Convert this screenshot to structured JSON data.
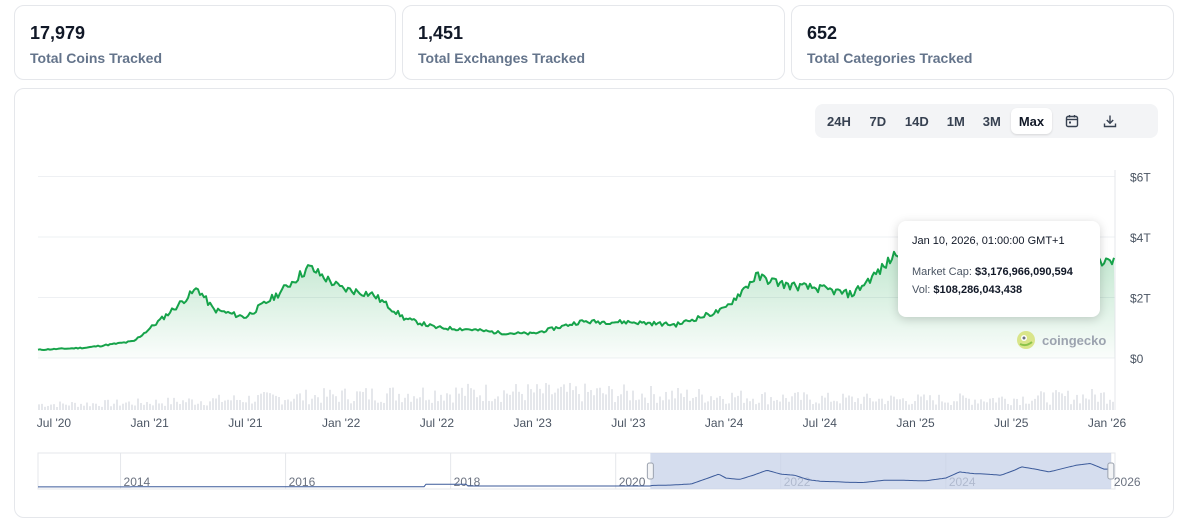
{
  "stats": [
    {
      "value": "17,979",
      "label": "Total Coins Tracked"
    },
    {
      "value": "1,451",
      "label": "Total Exchanges Tracked"
    },
    {
      "value": "652",
      "label": "Total Categories Tracked"
    }
  ],
  "range_buttons": [
    "24H",
    "7D",
    "14D",
    "1M",
    "3M",
    "Max"
  ],
  "active_range": "Max",
  "icons": {
    "calendar": "calendar-icon",
    "download": "download-icon",
    "brand": "coingecko-logo"
  },
  "tooltip": {
    "date": "Jan 10, 2026, 01:00:00 GMT+1",
    "market_cap_label": "Market Cap:",
    "market_cap_value": "$3,176,966,090,594",
    "volume_label": "Vol:",
    "volume_value": "$108,286,043,438"
  },
  "watermark": "coingecko",
  "colors": {
    "line": "#16a34a",
    "area_top": "#16a34a",
    "navigator_fill": "#c7d2e8",
    "navigator_line": "#3b5a9a"
  },
  "chart_data": {
    "type": "area",
    "series": [
      {
        "x": [
          "2020-06",
          "2020-09",
          "2020-12",
          "2021-02",
          "2021-04",
          "2021-05",
          "2021-07",
          "2021-09",
          "2021-11",
          "2022-01",
          "2022-03",
          "2022-05",
          "2022-07",
          "2022-09",
          "2022-11",
          "2023-01",
          "2023-04",
          "2023-07",
          "2023-10",
          "2024-01",
          "2024-03",
          "2024-05",
          "2024-07",
          "2024-09",
          "2024-11",
          "2024-12",
          "2025-02",
          "2025-04",
          "2025-06",
          "2025-08",
          "2025-10",
          "2025-12",
          "2026-01"
        ],
        "values": [
          0.27,
          0.34,
          0.55,
          1.4,
          2.3,
          1.6,
          1.35,
          2.1,
          3.0,
          2.3,
          2.1,
          1.3,
          1.0,
          0.95,
          0.83,
          0.8,
          1.2,
          1.19,
          1.1,
          1.6,
          2.7,
          2.4,
          2.3,
          2.1,
          3.0,
          3.6,
          3.2,
          2.7,
          3.3,
          3.9,
          4.2,
          3.2,
          3.18
        ]
      }
    ],
    "volume_series": "shown as grey bars beneath the price line",
    "y_ticks": [
      "$0",
      "$2T",
      "$4T",
      "$6T"
    ],
    "ylim": [
      0,
      6
    ],
    "x_ticks": [
      "Jul '20",
      "Jan '21",
      "Jul '21",
      "Jan '22",
      "Jul '22",
      "Jan '23",
      "Jul '23",
      "Jan '24",
      "Jul '24",
      "Jan '25",
      "Jul '25",
      "Jan '26"
    ],
    "navigator_ticks": [
      "2014",
      "2016",
      "2018",
      "2020",
      "2022",
      "2024",
      "2026"
    ],
    "navigator_range": [
      "2020",
      "2026"
    ],
    "grid": true,
    "legend": "none"
  }
}
